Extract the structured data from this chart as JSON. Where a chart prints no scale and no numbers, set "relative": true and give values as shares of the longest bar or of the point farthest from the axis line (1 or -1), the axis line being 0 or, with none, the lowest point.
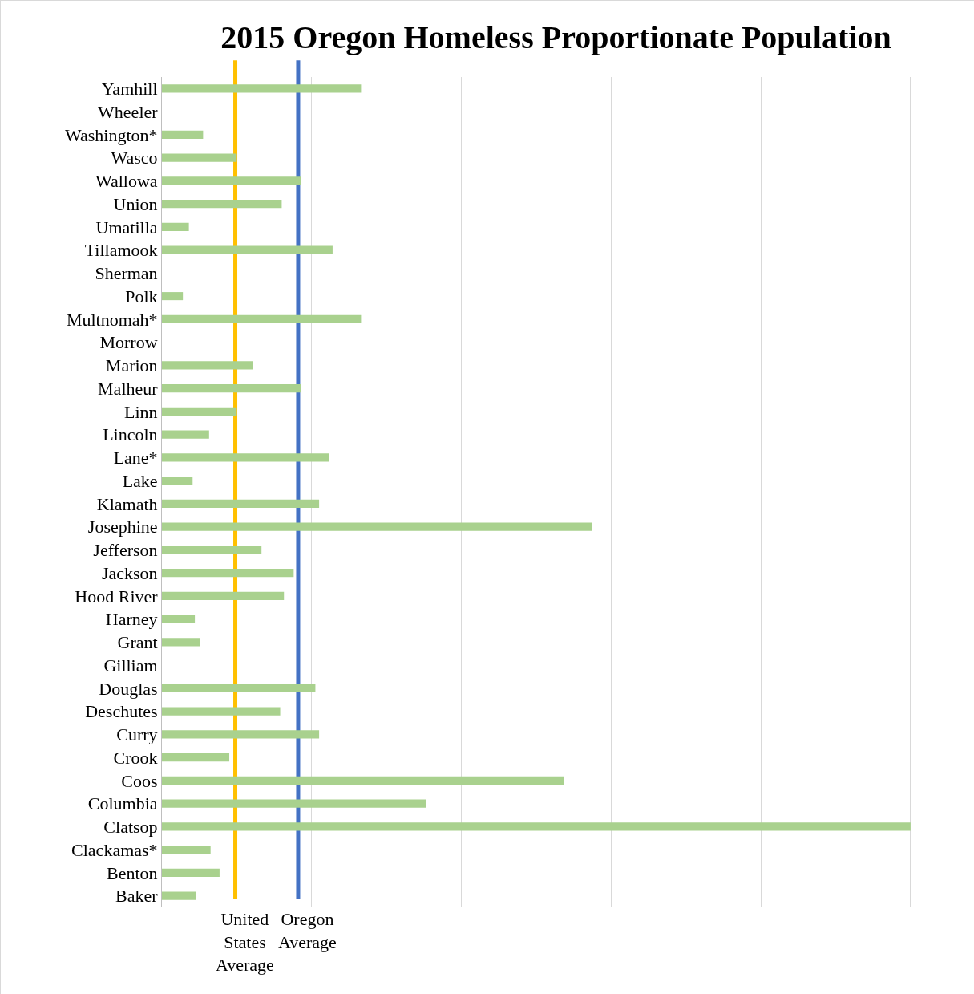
{
  "chart_data": {
    "type": "bar",
    "orientation": "horizontal",
    "relative": true,
    "title": "2015 Oregon Homeless Proportionate Population",
    "categories": [
      "Yamhill",
      "Wheeler",
      "Washington*",
      "Wasco",
      "Wallowa",
      "Union",
      "Umatilla",
      "Tillamook",
      "Sherman",
      "Polk",
      "Multnomah*",
      "Morrow",
      "Marion",
      "Malheur",
      "Linn",
      "Lincoln",
      "Lane*",
      "Lake",
      "Klamath",
      "Josephine",
      "Jefferson",
      "Jackson",
      "Hood River",
      "Harney",
      "Grant",
      "Gilliam",
      "Douglas",
      "Deschutes",
      "Curry",
      "Crook",
      "Coos",
      "Columbia",
      "Clatsop",
      "Clackamas*",
      "Benton",
      "Baker"
    ],
    "values": [
      0.266,
      0,
      0.055,
      0.1,
      0.186,
      0.16,
      0.036,
      0.228,
      0,
      0.028,
      0.266,
      0,
      0.122,
      0.186,
      0.1,
      0.063,
      0.223,
      0.041,
      0.21,
      0.575,
      0.133,
      0.176,
      0.163,
      0.044,
      0.051,
      0,
      0.205,
      0.158,
      0.21,
      0.09,
      0.537,
      0.353,
      1,
      0.065,
      0.077,
      0.045
    ],
    "color": "#a9d18e",
    "grid": "x",
    "ref_lines": [
      {
        "axis": "x",
        "value": 0.098,
        "label": "United States Average",
        "color": "#ffc000"
      },
      {
        "axis": "x",
        "value": 0.182,
        "label": "Oregon Average",
        "color": "#4472c4"
      }
    ]
  }
}
